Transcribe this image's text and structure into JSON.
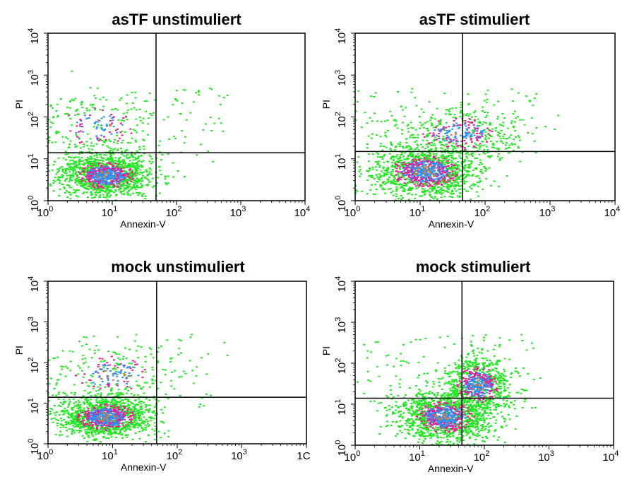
{
  "chart_data": [
    {
      "type": "scatter",
      "title": "asTF unstimuliert",
      "xlabel": "Annexin-V",
      "ylabel": "PI",
      "x_scale": "log",
      "y_scale": "log",
      "xlim": [
        1,
        10000
      ],
      "ylim": [
        1,
        10000
      ],
      "x_ticks": [
        "10",
        "10",
        "10",
        "10",
        "10"
      ],
      "x_tick_exp": [
        "0",
        "1",
        "2",
        "3",
        "4"
      ],
      "y_ticks": [
        "10",
        "10",
        "10",
        "10",
        "10"
      ],
      "y_tick_exp": [
        "0",
        "1",
        "2",
        "3",
        "4"
      ],
      "quadrant_gates": {
        "x": 48,
        "y": 14
      },
      "density_clusters": [
        {
          "x": 8,
          "y": 4,
          "spread_x": 0.35,
          "spread_y": 0.25,
          "weight": 1.0
        },
        {
          "x": 6,
          "y": 60,
          "spread_x": 0.45,
          "spread_y": 0.35,
          "weight": 0.15
        }
      ]
    },
    {
      "type": "scatter",
      "title": "asTF stimuliert",
      "xlabel": "Annexin-V",
      "ylabel": "PI",
      "x_scale": "log",
      "y_scale": "log",
      "xlim": [
        1,
        10000
      ],
      "ylim": [
        1,
        10000
      ],
      "x_ticks": [
        "10",
        "10",
        "10",
        "10",
        "10"
      ],
      "x_tick_exp": [
        "0",
        "1",
        "2",
        "3",
        "4"
      ],
      "y_ticks": [
        "10",
        "10",
        "10",
        "10",
        "10"
      ],
      "y_tick_exp": [
        "0",
        "1",
        "2",
        "3",
        "4"
      ],
      "quadrant_gates": {
        "x": 45,
        "y": 15
      },
      "density_clusters": [
        {
          "x": 12,
          "y": 5,
          "spread_x": 0.4,
          "spread_y": 0.3,
          "weight": 1.0
        },
        {
          "x": 40,
          "y": 40,
          "spread_x": 0.45,
          "spread_y": 0.3,
          "weight": 0.3
        }
      ]
    },
    {
      "type": "scatter",
      "title": "mock unstimuliert",
      "xlabel": "Annexin-V",
      "ylabel": "PI",
      "x_scale": "log",
      "y_scale": "log",
      "xlim": [
        1,
        10000
      ],
      "ylim": [
        1,
        10000
      ],
      "x_ticks": [
        "10",
        "10",
        "10",
        "10",
        "1C"
      ],
      "x_tick_exp": [
        "0",
        "1",
        "2",
        "3",
        ""
      ],
      "y_ticks": [
        "10",
        "10",
        "10",
        "10",
        "10"
      ],
      "y_tick_exp": [
        "0",
        "1",
        "2",
        "3",
        "4"
      ],
      "quadrant_gates": {
        "x": 48,
        "y": 14
      },
      "density_clusters": [
        {
          "x": 8,
          "y": 4.5,
          "spread_x": 0.35,
          "spread_y": 0.25,
          "weight": 1.0
        },
        {
          "x": 10,
          "y": 50,
          "spread_x": 0.45,
          "spread_y": 0.35,
          "weight": 0.15
        }
      ]
    },
    {
      "type": "scatter",
      "title": "mock stimuliert",
      "xlabel": "Annexin-V",
      "ylabel": "PI",
      "x_scale": "log",
      "y_scale": "log",
      "xlim": [
        1,
        10000
      ],
      "ylim": [
        1,
        10000
      ],
      "x_ticks": [
        "10",
        "10",
        "10",
        "10",
        "10"
      ],
      "x_tick_exp": [
        "0",
        "1",
        "2",
        "3",
        "4"
      ],
      "y_ticks": [
        "10",
        "10",
        "10",
        "10",
        "10"
      ],
      "y_tick_exp": [
        "0",
        "1",
        "2",
        "3",
        "4"
      ],
      "quadrant_gates": {
        "x": 45,
        "y": 14
      },
      "density_clusters": [
        {
          "x": 25,
          "y": 5,
          "spread_x": 0.35,
          "spread_y": 0.3,
          "weight": 1.0
        },
        {
          "x": 80,
          "y": 30,
          "spread_x": 0.25,
          "spread_y": 0.35,
          "weight": 0.6
        }
      ]
    }
  ],
  "colors": {
    "density_low": "#22e622",
    "density_mid": "#e0208c",
    "density_high": "#2f8ff0",
    "density_peak": "#e07a2a",
    "gate_line": "#000000"
  }
}
